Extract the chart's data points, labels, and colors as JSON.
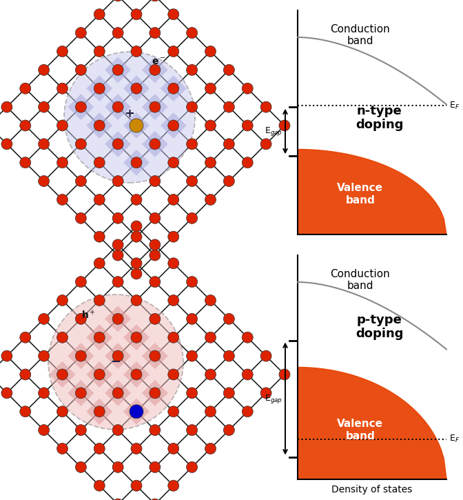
{
  "bg_color": "#ffffff",
  "lattice_dot_color": "#dd2200",
  "dopant_n_color": "#cc8800",
  "dopant_p_color": "#0000cc",
  "n_circle_fill": "#c8c8ee",
  "p_circle_fill": "#f0bbbb",
  "n_inner_fill": "#aaaadd",
  "p_inner_fill": "#dd9999",
  "grid_line_color": "#111111",
  "circle_edge_color": "#777777",
  "valence_band_color": "#e84000",
  "n_type_label": "n-type\ndoping",
  "p_type_label": "p-type\ndoping",
  "cond_band_label": "Conduction\nband",
  "val_band_label": "Valence\nband",
  "dos_label": "Density of states",
  "ef_label": "E$_F$",
  "egap_label": "E$_{gap}$"
}
